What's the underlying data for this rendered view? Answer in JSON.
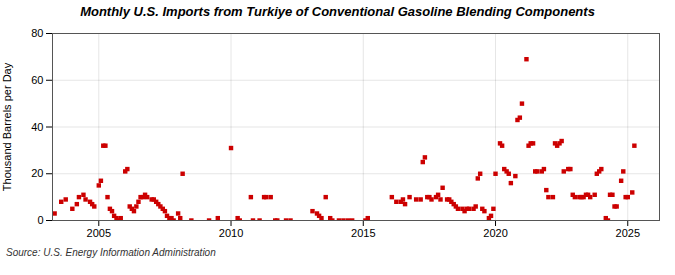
{
  "chart_data": {
    "type": "scatter",
    "title": "Monthly U.S. Imports from Turkiye of Conventional Gasoline Blending Components",
    "ylabel": "Thousand Barrels per Day",
    "source": "Source: U.S. Energy Information Administration",
    "color": "#cc0000",
    "marker": "square",
    "grid": true,
    "xlim": [
      2003.25,
      2026.2
    ],
    "xticks": [
      2005,
      2010,
      2015,
      2020,
      2025
    ],
    "ylim": [
      0,
      80
    ],
    "yticks": [
      0,
      20,
      40,
      60,
      80
    ],
    "x": [
      2003.33,
      2003.58,
      2003.75,
      2004.0,
      2004.17,
      2004.25,
      2004.42,
      2004.5,
      2004.67,
      2004.75,
      2004.83,
      2005.0,
      2005.08,
      2005.17,
      2005.25,
      2005.33,
      2005.42,
      2005.5,
      2005.58,
      2005.67,
      2005.75,
      2005.83,
      2006.0,
      2006.08,
      2006.17,
      2006.25,
      2006.33,
      2006.42,
      2006.5,
      2006.58,
      2006.67,
      2006.75,
      2006.83,
      2007.0,
      2007.08,
      2007.17,
      2007.25,
      2007.33,
      2007.42,
      2007.5,
      2007.58,
      2007.67,
      2007.75,
      2007.83,
      2008.0,
      2008.08,
      2008.17,
      2008.5,
      2009.17,
      2009.5,
      2010.0,
      2010.25,
      2010.33,
      2010.75,
      2010.83,
      2011.08,
      2011.25,
      2011.33,
      2011.5,
      2011.67,
      2011.75,
      2012.08,
      2012.25,
      2013.08,
      2013.25,
      2013.33,
      2013.42,
      2013.58,
      2013.75,
      2013.83,
      2014.08,
      2014.25,
      2014.42,
      2014.58,
      2015.08,
      2015.17,
      2016.08,
      2016.25,
      2016.42,
      2016.5,
      2016.58,
      2016.75,
      2017.0,
      2017.17,
      2017.25,
      2017.33,
      2017.42,
      2017.5,
      2017.58,
      2017.75,
      2017.83,
      2017.92,
      2018.0,
      2018.17,
      2018.25,
      2018.33,
      2018.42,
      2018.5,
      2018.58,
      2018.75,
      2018.83,
      2018.92,
      2019.0,
      2019.17,
      2019.25,
      2019.33,
      2019.42,
      2019.5,
      2019.58,
      2019.75,
      2019.83,
      2019.92,
      2020.0,
      2020.17,
      2020.25,
      2020.33,
      2020.42,
      2020.5,
      2020.58,
      2020.75,
      2020.83,
      2020.92,
      2021.0,
      2021.17,
      2021.25,
      2021.33,
      2021.42,
      2021.5,
      2021.58,
      2021.75,
      2021.83,
      2021.92,
      2022.0,
      2022.17,
      2022.25,
      2022.33,
      2022.42,
      2022.5,
      2022.58,
      2022.75,
      2022.83,
      2022.92,
      2023.0,
      2023.17,
      2023.25,
      2023.33,
      2023.42,
      2023.5,
      2023.58,
      2023.75,
      2023.83,
      2023.92,
      2024.0,
      2024.17,
      2024.25,
      2024.33,
      2024.42,
      2024.5,
      2024.58,
      2024.75,
      2024.83,
      2024.92,
      2025.0,
      2025.17,
      2025.25
    ],
    "values": [
      3,
      8,
      9,
      5,
      7,
      10,
      11,
      9,
      8,
      7,
      6,
      15,
      17,
      32,
      32,
      10,
      5,
      4,
      2,
      1,
      0,
      1,
      21,
      22,
      6,
      5,
      4,
      6,
      8,
      10,
      10,
      11,
      10,
      9,
      9,
      8,
      7,
      6,
      5,
      4,
      2,
      1,
      1,
      0,
      3,
      1,
      20,
      0,
      0,
      1,
      31,
      1,
      0,
      10,
      0,
      0,
      10,
      10,
      10,
      0,
      0,
      0,
      0,
      4,
      3,
      2,
      1,
      10,
      1,
      0,
      0,
      0,
      0,
      0,
      0,
      1,
      10,
      8,
      8,
      9,
      7,
      10,
      9,
      9,
      25,
      27,
      10,
      10,
      9,
      10,
      11,
      9,
      14,
      9,
      9,
      8,
      7,
      6,
      5,
      5,
      4,
      5,
      5,
      5,
      6,
      18,
      20,
      5,
      4,
      1,
      2,
      5,
      20,
      33,
      32,
      22,
      21,
      20,
      16,
      19,
      43,
      44,
      50,
      69,
      32,
      33,
      33,
      21,
      21,
      21,
      22,
      13,
      10,
      10,
      33,
      32,
      33,
      34,
      21,
      22,
      22,
      11,
      10,
      10,
      10,
      10,
      11,
      11,
      10,
      11,
      20,
      21,
      22,
      1,
      0,
      11,
      11,
      6,
      6,
      17,
      21,
      10,
      10,
      12,
      32
    ]
  }
}
